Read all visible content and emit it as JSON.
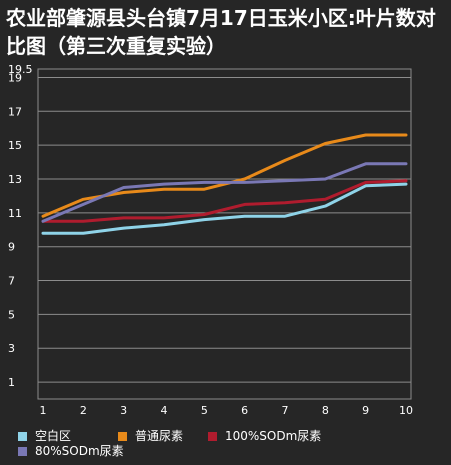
{
  "chart_data": {
    "type": "line",
    "title": "农业部肇源县头台镇7月17日玉米小区:叶片数对比图（第三次重复实验）",
    "xlabel": "",
    "ylabel": "",
    "x": [
      1,
      2,
      3,
      4,
      5,
      6,
      7,
      8,
      9,
      10
    ],
    "x_ticks": [
      "1",
      "2",
      "3",
      "4",
      "5",
      "6",
      "7",
      "8",
      "9",
      "10"
    ],
    "y_ticks": [
      "1",
      "3",
      "5",
      "7",
      "9",
      "11",
      "13",
      "15",
      "17",
      "19",
      "19.5"
    ],
    "ylim": [
      0,
      19.5
    ],
    "grid": true,
    "legend_position": "bottom",
    "series": [
      {
        "name": "空白区",
        "color": "#8fd3e8",
        "values": [
          9.8,
          9.8,
          10.1,
          10.3,
          10.6,
          10.8,
          10.8,
          11.4,
          12.6,
          12.7
        ]
      },
      {
        "name": "普通尿素",
        "color": "#e88a1a",
        "values": [
          10.8,
          11.8,
          12.2,
          12.4,
          12.4,
          13.0,
          14.1,
          15.1,
          15.6,
          15.6
        ]
      },
      {
        "name": "100%SODm尿素",
        "color": "#b01c2e",
        "values": [
          10.5,
          10.5,
          10.7,
          10.7,
          10.9,
          11.5,
          11.6,
          11.8,
          12.8,
          12.9
        ]
      },
      {
        "name": "80%SODm尿素",
        "color": "#7a78b5",
        "values": [
          10.5,
          11.5,
          12.5,
          12.7,
          12.8,
          12.8,
          12.9,
          13.0,
          13.9,
          13.9
        ]
      }
    ]
  }
}
